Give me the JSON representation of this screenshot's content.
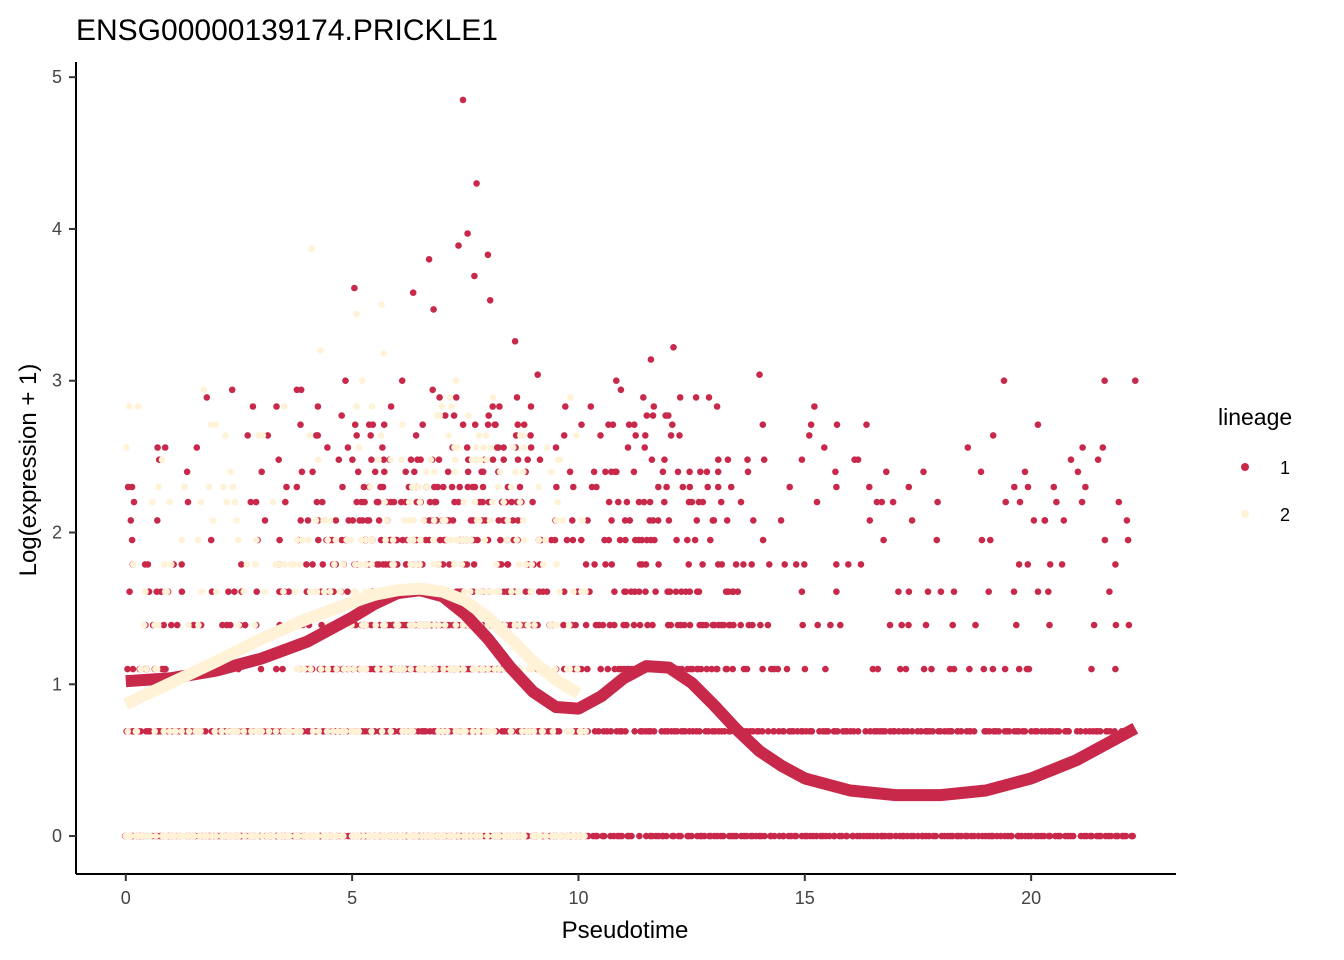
{
  "chart_data": {
    "type": "scatter",
    "title": "ENSG00000139174.PRICKLE1",
    "xlabel": "Pseudotime",
    "ylabel": "Log(expression + 1)",
    "xlim": [
      -1.1,
      23.2
    ],
    "ylim": [
      -0.25,
      5.1
    ],
    "x_ticks": [
      0,
      5,
      10,
      15,
      20
    ],
    "y_ticks": [
      0,
      1,
      2,
      3,
      4,
      5
    ],
    "grid": false,
    "legend": {
      "title": "lineage",
      "position": "right",
      "entries": [
        {
          "label": "1",
          "color": "#C8294A"
        },
        {
          "label": "2",
          "color": "#FFF2D6"
        }
      ]
    },
    "point_levels": [
      0,
      0.69,
      1.1,
      1.39,
      1.61,
      1.79,
      1.95,
      2.08,
      2.2,
      2.3,
      2.4,
      2.48,
      2.56,
      2.64,
      2.71,
      2.77,
      2.83,
      2.89,
      2.94,
      3.0
    ],
    "series": [
      {
        "name": "1",
        "color": "#C8294A",
        "x_range": [
          0,
          22.3
        ],
        "highlighted_points": [
          {
            "x": 7.45,
            "y": 4.85
          },
          {
            "x": 7.75,
            "y": 4.3
          },
          {
            "x": 7.55,
            "y": 3.97
          },
          {
            "x": 7.35,
            "y": 3.89
          },
          {
            "x": 8.0,
            "y": 3.83
          },
          {
            "x": 6.7,
            "y": 3.8
          },
          {
            "x": 7.7,
            "y": 3.69
          },
          {
            "x": 5.05,
            "y": 3.61
          },
          {
            "x": 6.35,
            "y": 3.58
          },
          {
            "x": 8.05,
            "y": 3.53
          },
          {
            "x": 6.8,
            "y": 3.47
          },
          {
            "x": 8.6,
            "y": 3.26
          },
          {
            "x": 12.1,
            "y": 3.22
          },
          {
            "x": 11.6,
            "y": 3.14
          },
          {
            "x": 9.1,
            "y": 3.04
          },
          {
            "x": 14.0,
            "y": 3.04
          },
          {
            "x": 19.4,
            "y": 3.0
          },
          {
            "x": 22.3,
            "y": 3.0
          },
          {
            "x": 2.35,
            "y": 2.94
          },
          {
            "x": 20.15,
            "y": 2.71
          },
          {
            "x": 15.1,
            "y": 2.64
          },
          {
            "x": 16.1,
            "y": 2.48
          },
          {
            "x": 16.8,
            "y": 2.4
          },
          {
            "x": 20.5,
            "y": 2.3
          },
          {
            "x": 0.05,
            "y": 2.3
          },
          {
            "x": 16.7,
            "y": 2.2
          },
          {
            "x": 20.3,
            "y": 2.08
          }
        ],
        "smooth_curve": {
          "x": [
            0,
            1,
            2,
            3,
            4,
            5,
            5.5,
            6,
            6.5,
            7,
            7.5,
            8,
            8.5,
            9,
            9.5,
            10,
            10.5,
            11,
            11.5,
            12,
            12.5,
            13,
            13.5,
            14,
            14.5,
            15,
            16,
            17,
            18,
            19,
            20,
            21,
            22.3
          ],
          "y": [
            1.02,
            1.04,
            1.09,
            1.17,
            1.28,
            1.44,
            1.53,
            1.6,
            1.62,
            1.58,
            1.46,
            1.3,
            1.11,
            0.95,
            0.85,
            0.84,
            0.92,
            1.04,
            1.12,
            1.11,
            1.01,
            0.86,
            0.7,
            0.56,
            0.46,
            0.38,
            0.3,
            0.27,
            0.27,
            0.3,
            0.38,
            0.5,
            0.71
          ]
        }
      },
      {
        "name": "2",
        "color": "#FFF2D6",
        "x_range": [
          0,
          10.2
        ],
        "highlighted_points": [
          {
            "x": 4.1,
            "y": 3.87
          },
          {
            "x": 5.65,
            "y": 3.5
          },
          {
            "x": 5.1,
            "y": 3.44
          },
          {
            "x": 5.7,
            "y": 3.18
          },
          {
            "x": 4.3,
            "y": 3.2
          },
          {
            "x": 2.2,
            "y": 2.64
          },
          {
            "x": 9.3,
            "y": 2.56
          },
          {
            "x": 0.8,
            "y": 2.48
          }
        ],
        "smooth_curve": {
          "x": [
            0,
            1,
            2,
            3,
            4,
            5,
            5.5,
            6,
            6.5,
            7,
            7.5,
            8,
            8.5,
            9,
            9.5,
            10
          ],
          "y": [
            0.87,
            1.01,
            1.15,
            1.3,
            1.43,
            1.54,
            1.59,
            1.62,
            1.63,
            1.61,
            1.55,
            1.44,
            1.3,
            1.15,
            1.03,
            0.94
          ]
        }
      }
    ]
  }
}
